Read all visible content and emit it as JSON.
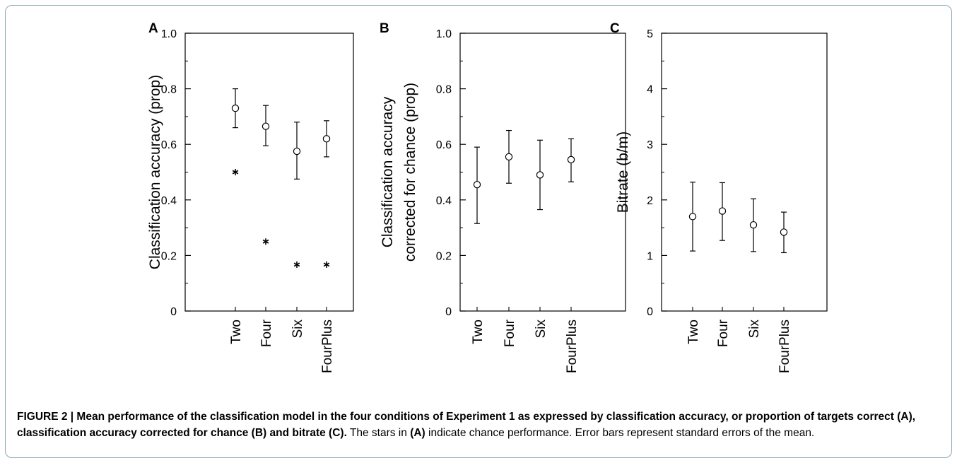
{
  "caption": {
    "lead": "FIGURE 2 | Mean performance of the classification model in the four conditions of Experiment 1 as expressed by classification accuracy, or proportion of targets correct (A), classification accuracy corrected for chance (B) and bitrate (C).",
    "t1": " The stars in ",
    "r1": "(A)",
    "t2": " indicate chance performance. Error bars represent standard errors of the mean."
  },
  "chart_data": [
    {
      "type": "scatter",
      "panel": "A",
      "categories": [
        "Two",
        "Four",
        "Six",
        "FourPlus"
      ],
      "ylabel": "Classification accuracy (prop)",
      "ylim": [
        0,
        1.0
      ],
      "yticks": [
        0,
        0.2,
        0.4,
        0.6,
        0.8,
        1.0
      ],
      "ytick_labels": [
        "0",
        "0.2",
        "0.4",
        "0.6",
        "0.8",
        "1.0"
      ],
      "means": [
        0.73,
        0.665,
        0.575,
        0.62
      ],
      "err_low": [
        0.66,
        0.595,
        0.475,
        0.555
      ],
      "err_high": [
        0.8,
        0.74,
        0.68,
        0.685
      ],
      "chance": [
        0.5,
        0.25,
        0.167,
        0.167
      ],
      "chance_marker": "star"
    },
    {
      "type": "scatter",
      "panel": "B",
      "categories": [
        "Two",
        "Four",
        "Six",
        "FourPlus"
      ],
      "ylabel_lines": [
        "Classification accuracy",
        "corrected for chance (prop)"
      ],
      "ylim": [
        0,
        1.0
      ],
      "yticks": [
        0,
        0.2,
        0.4,
        0.6,
        0.8,
        1.0
      ],
      "ytick_labels": [
        "0",
        "0.2",
        "0.4",
        "0.6",
        "0.8",
        "1.0"
      ],
      "means": [
        0.455,
        0.555,
        0.49,
        0.545
      ],
      "err_low": [
        0.315,
        0.46,
        0.365,
        0.465
      ],
      "err_high": [
        0.59,
        0.65,
        0.615,
        0.62
      ]
    },
    {
      "type": "scatter",
      "panel": "C",
      "categories": [
        "Two",
        "Four",
        "Six",
        "FourPlus"
      ],
      "ylabel": "Bitrate (b/m)",
      "ylim": [
        0,
        5
      ],
      "yticks": [
        0,
        1,
        2,
        3,
        4,
        5
      ],
      "ytick_labels": [
        "0",
        "1",
        "2",
        "3",
        "4",
        "5"
      ],
      "means": [
        1.7,
        1.8,
        1.55,
        1.42
      ],
      "err_low": [
        1.08,
        1.27,
        1.07,
        1.05
      ],
      "err_high": [
        2.32,
        2.31,
        2.02,
        1.78
      ]
    }
  ]
}
